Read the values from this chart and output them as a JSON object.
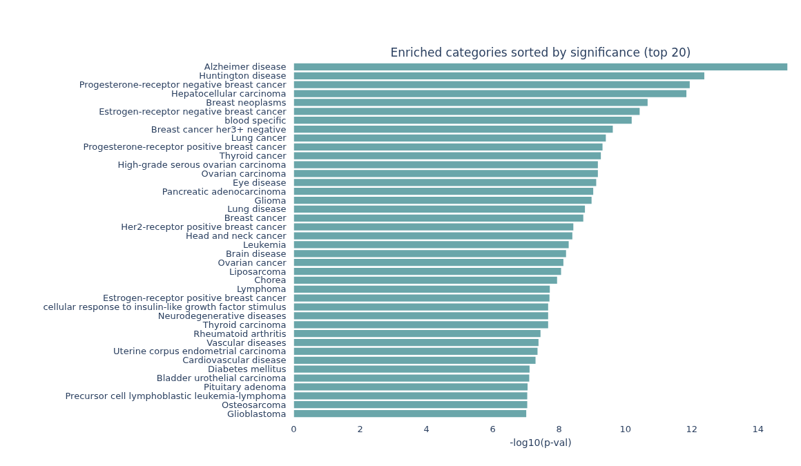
{
  "chart_data": {
    "type": "bar",
    "orientation": "horizontal",
    "title": "Enriched categories sorted by significance (top 20)",
    "xlabel": "-log10(p-val)",
    "categories": [
      "Alzheimer disease",
      "Huntington disease",
      "Progesterone-receptor negative breast cancer",
      "Hepatocellular carcinoma",
      "Breast neoplasms",
      "Estrogen-receptor negative breast cancer",
      "blood specific",
      "Breast cancer her3+ negative",
      "Lung cancer",
      "Progesterone-receptor positive breast cancer",
      "Thyroid cancer",
      "High-grade serous ovarian carcinoma",
      "Ovarian carcinoma",
      "Eye disease",
      "Pancreatic adenocarcinoma",
      "Glioma",
      "Lung disease",
      "Breast cancer",
      "Her2-receptor positive breast cancer",
      "Head and neck cancer",
      "Leukemia",
      "Brain disease",
      "Ovarian cancer",
      "Liposarcoma",
      "Chorea",
      "Lymphoma",
      "Estrogen-receptor positive breast cancer",
      "cellular response to insulin-like growth factor stimulus",
      "Neurodegenerative diseases",
      "Thyroid carcinoma",
      "Rheumatoid arthritis",
      "Vascular diseases",
      "Uterine corpus endometrial carcinoma",
      "Cardiovascular disease",
      "Diabetes mellitus",
      "Bladder urothelial carcinoma",
      "Pituitary adenoma",
      "Precursor cell lymphoblastic leukemia-lymphoma",
      "Osteosarcoma",
      "Glioblastoma"
    ],
    "values": [
      14.89,
      12.38,
      11.94,
      11.84,
      10.67,
      10.43,
      10.19,
      9.62,
      9.41,
      9.31,
      9.26,
      9.17,
      9.17,
      9.12,
      9.03,
      8.98,
      8.78,
      8.73,
      8.43,
      8.4,
      8.29,
      8.21,
      8.13,
      8.06,
      7.94,
      7.72,
      7.71,
      7.67,
      7.67,
      7.67,
      7.44,
      7.38,
      7.35,
      7.29,
      7.11,
      7.1,
      7.05,
      7.04,
      7.04,
      7.01
    ],
    "color": "#6aa6aa",
    "xlim": [
      0,
      14.89
    ],
    "xticks": [
      0,
      2,
      4,
      6,
      8,
      10,
      12,
      14
    ],
    "grid": false
  }
}
